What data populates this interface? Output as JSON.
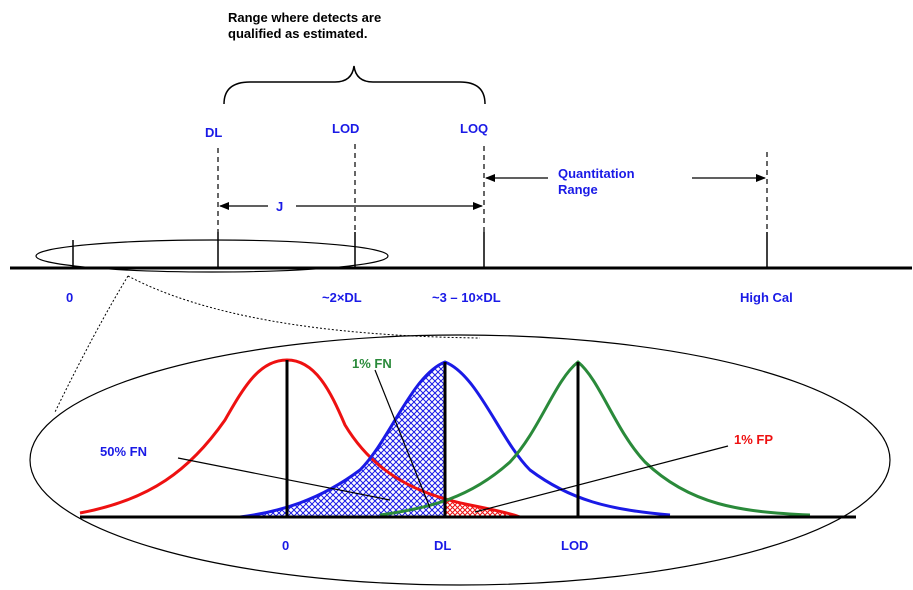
{
  "annotation": {
    "line1": "Range where detects are",
    "line2": "qualified as estimated."
  },
  "limits": {
    "dl": "DL",
    "lod": "LOD",
    "loq": "LOQ"
  },
  "j_label": "J",
  "quantitation": {
    "line1": "Quantitation",
    "line2": "Range"
  },
  "axis_labels": {
    "zero": "0",
    "two_dl": "~2×DL",
    "three_ten_dl": "~3 – 10×DL",
    "high_cal": "High Cal"
  },
  "zoom": {
    "fn50": "50% FN",
    "fn1": "1% FN",
    "fp1": "1% FP",
    "axis_zero": "0",
    "axis_dl": "DL",
    "axis_lod": "LOD"
  },
  "colors": {
    "blue_text": "#1a1ae6",
    "red_curve": "#ee1111",
    "blue_curve": "#1a1ae6",
    "green_curve": "#2a8a3a"
  }
}
